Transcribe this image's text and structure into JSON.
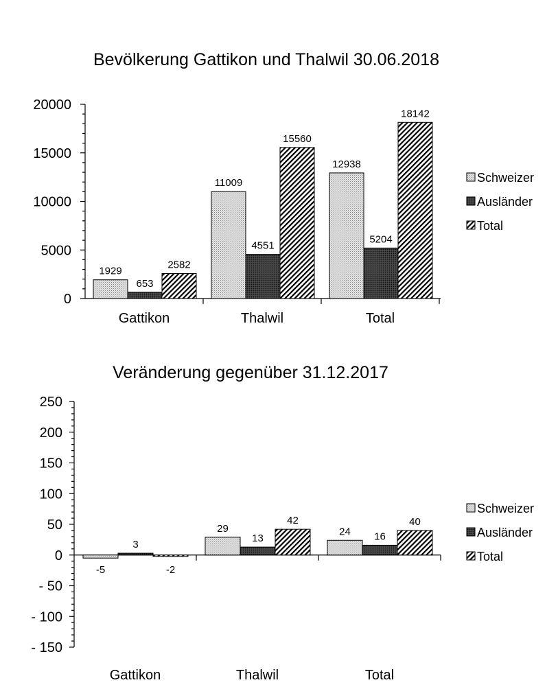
{
  "chart_data": [
    {
      "type": "bar",
      "title": "Bevölkerung  Gattikon  und Thalwil 30.06.2018",
      "categories": [
        "Gattikon",
        "Thalwil",
        "Total"
      ],
      "series": [
        {
          "name": "Schweizer",
          "values": [
            1929,
            11009,
            12938
          ]
        },
        {
          "name": "Ausländer",
          "values": [
            653,
            4551,
            5204
          ]
        },
        {
          "name": "Total",
          "values": [
            2582,
            15560,
            18142
          ]
        }
      ],
      "ylim": [
        0,
        20000
      ],
      "yticks": [
        0,
        5000,
        10000,
        15000,
        20000
      ],
      "ytick_labels": [
        "0",
        "5000",
        "10000",
        "15000",
        "20000"
      ],
      "xlabel": "",
      "ylabel": "",
      "legend": "right"
    },
    {
      "type": "bar",
      "title": "Veränderung gegenüber 31.12.2017",
      "categories": [
        "Gattikon",
        "Thalwil",
        "Total"
      ],
      "series": [
        {
          "name": "Schweizer",
          "values": [
            -5,
            29,
            24
          ]
        },
        {
          "name": "Ausländer",
          "values": [
            3,
            13,
            16
          ]
        },
        {
          "name": "Total",
          "values": [
            -2,
            42,
            40
          ]
        }
      ],
      "ylim": [
        -150,
        250
      ],
      "yticks": [
        -150,
        -100,
        -50,
        0,
        50,
        100,
        150,
        200,
        250
      ],
      "ytick_labels": [
        "- 150",
        "- 100",
        "- 50",
        "0",
        "50",
        "100",
        "150",
        "200",
        "250"
      ],
      "xlabel": "",
      "ylabel": "",
      "legend": "right"
    }
  ]
}
